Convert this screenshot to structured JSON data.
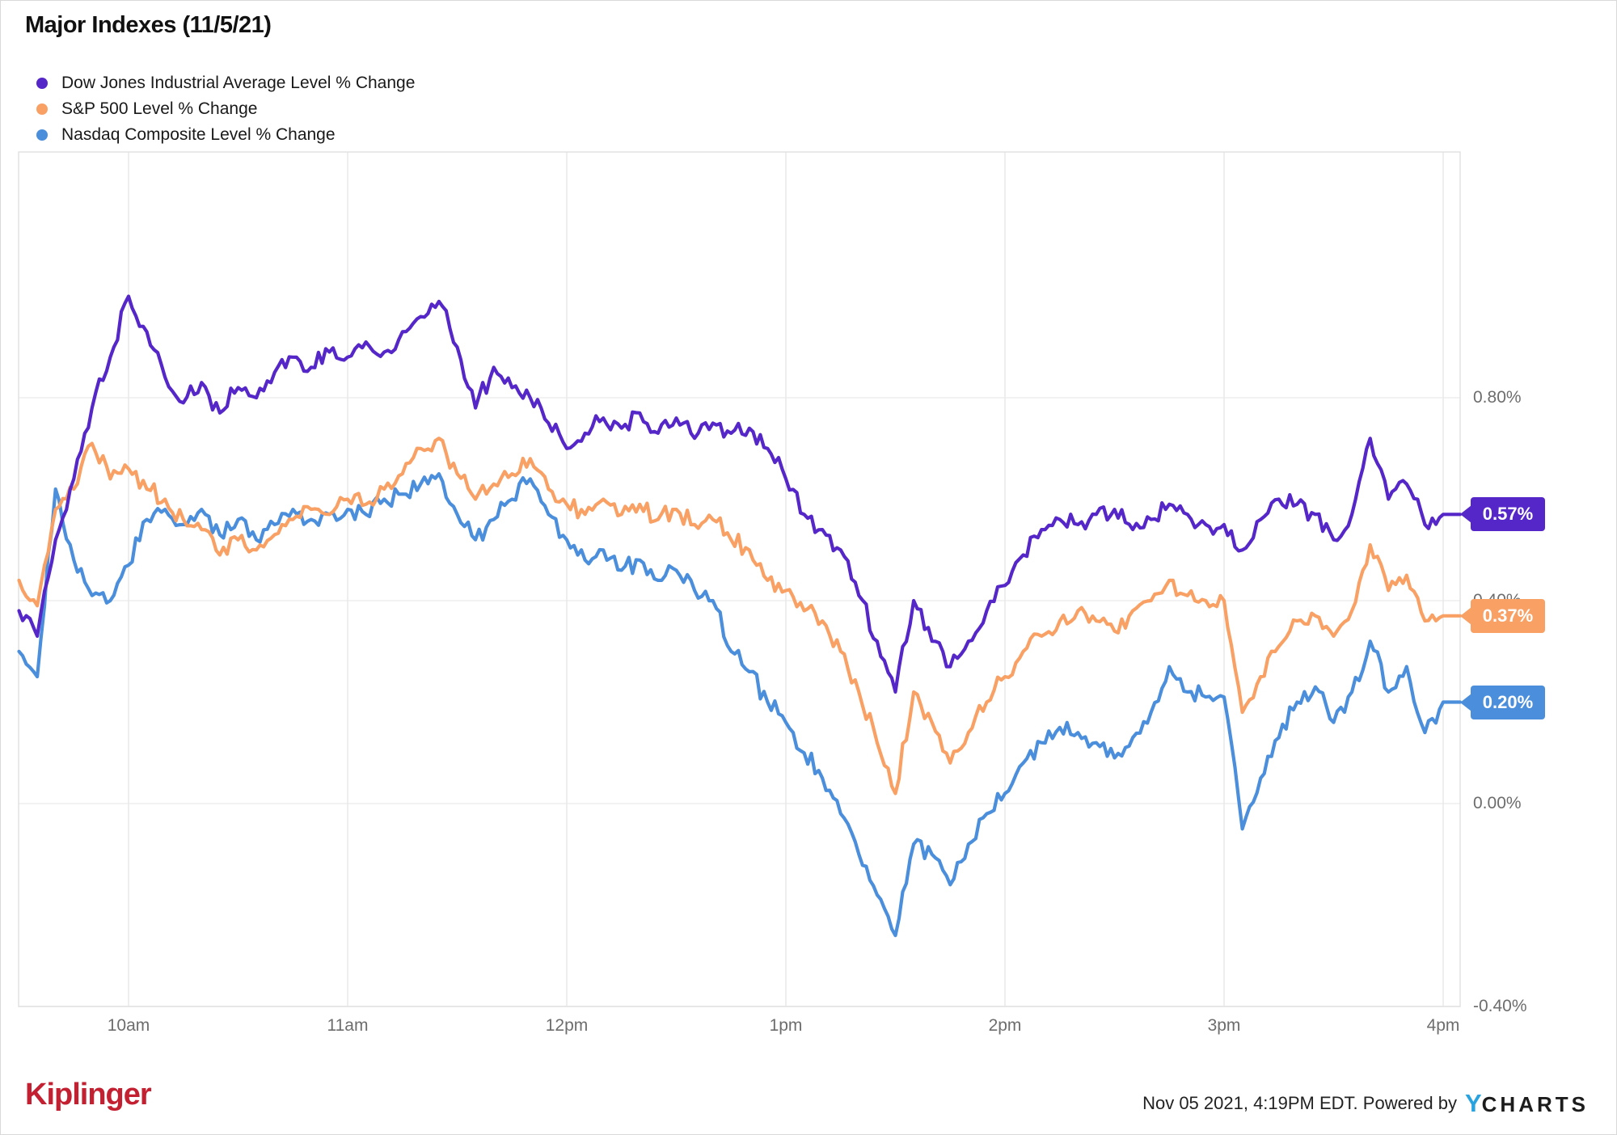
{
  "title": "Major Indexes (11/5/21)",
  "legend": {
    "items": [
      {
        "label": "Dow Jones Industrial Average Level % Change",
        "color": "#5627c8"
      },
      {
        "label": "S&P 500 Level % Change",
        "color": "#f9a065"
      },
      {
        "label": "Nasdaq Composite Level % Change",
        "color": "#4b8fdc"
      }
    ]
  },
  "footer": {
    "brand": "Kiplinger",
    "attribution": "Nov 05 2021, 4:19PM EDT. Powered by",
    "ycharts_y": "Y",
    "ycharts_rest": "CHARTS"
  },
  "chart_data": {
    "type": "line",
    "title": "Major Indexes (11/5/21)",
    "xlabel": "",
    "ylabel": "% Change",
    "x_start_hour": 9.5,
    "x_interval_minutes": 5,
    "x_end_hour": 16.0,
    "x_ticks": [
      {
        "hour": 10,
        "label": "10am"
      },
      {
        "hour": 11,
        "label": "11am"
      },
      {
        "hour": 12,
        "label": "12pm"
      },
      {
        "hour": 13,
        "label": "1pm"
      },
      {
        "hour": 14,
        "label": "2pm"
      },
      {
        "hour": 15,
        "label": "3pm"
      },
      {
        "hour": 16,
        "label": "4pm"
      }
    ],
    "y_ticks": [
      {
        "value": 0.8,
        "label": "0.80%"
      },
      {
        "value": 0.4,
        "label": "0.40%"
      },
      {
        "value": 0.0,
        "label": "0.00%"
      },
      {
        "value": -0.4,
        "label": "-0.40%"
      }
    ],
    "ylim": [
      -0.4,
      1.28
    ],
    "grid": true,
    "legend_position": "top-left",
    "series": [
      {
        "name": "Dow Jones Industrial Average Level % Change",
        "color": "#5627c8",
        "end_label": "0.57%",
        "end_value": 0.57,
        "values": [
          0.38,
          0.33,
          0.52,
          0.64,
          0.78,
          0.88,
          1.0,
          0.93,
          0.84,
          0.79,
          0.83,
          0.77,
          0.82,
          0.8,
          0.85,
          0.88,
          0.86,
          0.89,
          0.88,
          0.91,
          0.89,
          0.93,
          0.96,
          0.99,
          0.9,
          0.78,
          0.86,
          0.82,
          0.8,
          0.75,
          0.7,
          0.73,
          0.76,
          0.74,
          0.77,
          0.73,
          0.76,
          0.72,
          0.75,
          0.73,
          0.74,
          0.7,
          0.64,
          0.57,
          0.54,
          0.5,
          0.41,
          0.32,
          0.22,
          0.4,
          0.32,
          0.27,
          0.32,
          0.38,
          0.43,
          0.49,
          0.54,
          0.56,
          0.55,
          0.57,
          0.58,
          0.54,
          0.56,
          0.59,
          0.57,
          0.55,
          0.55,
          0.5,
          0.56,
          0.6,
          0.59,
          0.57,
          0.52,
          0.57,
          0.72,
          0.6,
          0.63,
          0.55,
          0.57
        ]
      },
      {
        "name": "S&P 500 Level % Change",
        "color": "#f9a065",
        "end_label": "0.37%",
        "end_value": 0.37,
        "values": [
          0.44,
          0.39,
          0.58,
          0.62,
          0.71,
          0.64,
          0.66,
          0.62,
          0.6,
          0.56,
          0.54,
          0.49,
          0.52,
          0.5,
          0.53,
          0.56,
          0.58,
          0.57,
          0.6,
          0.59,
          0.62,
          0.65,
          0.7,
          0.72,
          0.65,
          0.6,
          0.63,
          0.65,
          0.68,
          0.62,
          0.59,
          0.57,
          0.6,
          0.57,
          0.59,
          0.56,
          0.58,
          0.55,
          0.56,
          0.52,
          0.5,
          0.44,
          0.42,
          0.38,
          0.36,
          0.3,
          0.22,
          0.12,
          0.02,
          0.22,
          0.16,
          0.08,
          0.14,
          0.2,
          0.25,
          0.3,
          0.33,
          0.36,
          0.38,
          0.36,
          0.34,
          0.38,
          0.4,
          0.44,
          0.41,
          0.4,
          0.4,
          0.18,
          0.25,
          0.31,
          0.36,
          0.37,
          0.33,
          0.38,
          0.51,
          0.42,
          0.45,
          0.36,
          0.37
        ]
      },
      {
        "name": "Nasdaq Composite Level % Change",
        "color": "#4b8fdc",
        "end_label": "0.20%",
        "end_value": 0.2,
        "values": [
          0.3,
          0.25,
          0.62,
          0.48,
          0.41,
          0.4,
          0.47,
          0.56,
          0.58,
          0.55,
          0.58,
          0.53,
          0.56,
          0.52,
          0.55,
          0.58,
          0.56,
          0.57,
          0.58,
          0.57,
          0.6,
          0.61,
          0.63,
          0.65,
          0.57,
          0.52,
          0.56,
          0.6,
          0.64,
          0.57,
          0.52,
          0.48,
          0.5,
          0.46,
          0.48,
          0.44,
          0.46,
          0.42,
          0.4,
          0.3,
          0.26,
          0.2,
          0.16,
          0.1,
          0.05,
          -0.02,
          -0.1,
          -0.18,
          -0.26,
          -0.08,
          -0.1,
          -0.16,
          -0.08,
          -0.02,
          0.02,
          0.08,
          0.12,
          0.15,
          0.14,
          0.12,
          0.09,
          0.13,
          0.18,
          0.27,
          0.22,
          0.21,
          0.21,
          -0.05,
          0.05,
          0.13,
          0.2,
          0.23,
          0.16,
          0.22,
          0.32,
          0.22,
          0.27,
          0.14,
          0.2
        ]
      }
    ]
  }
}
